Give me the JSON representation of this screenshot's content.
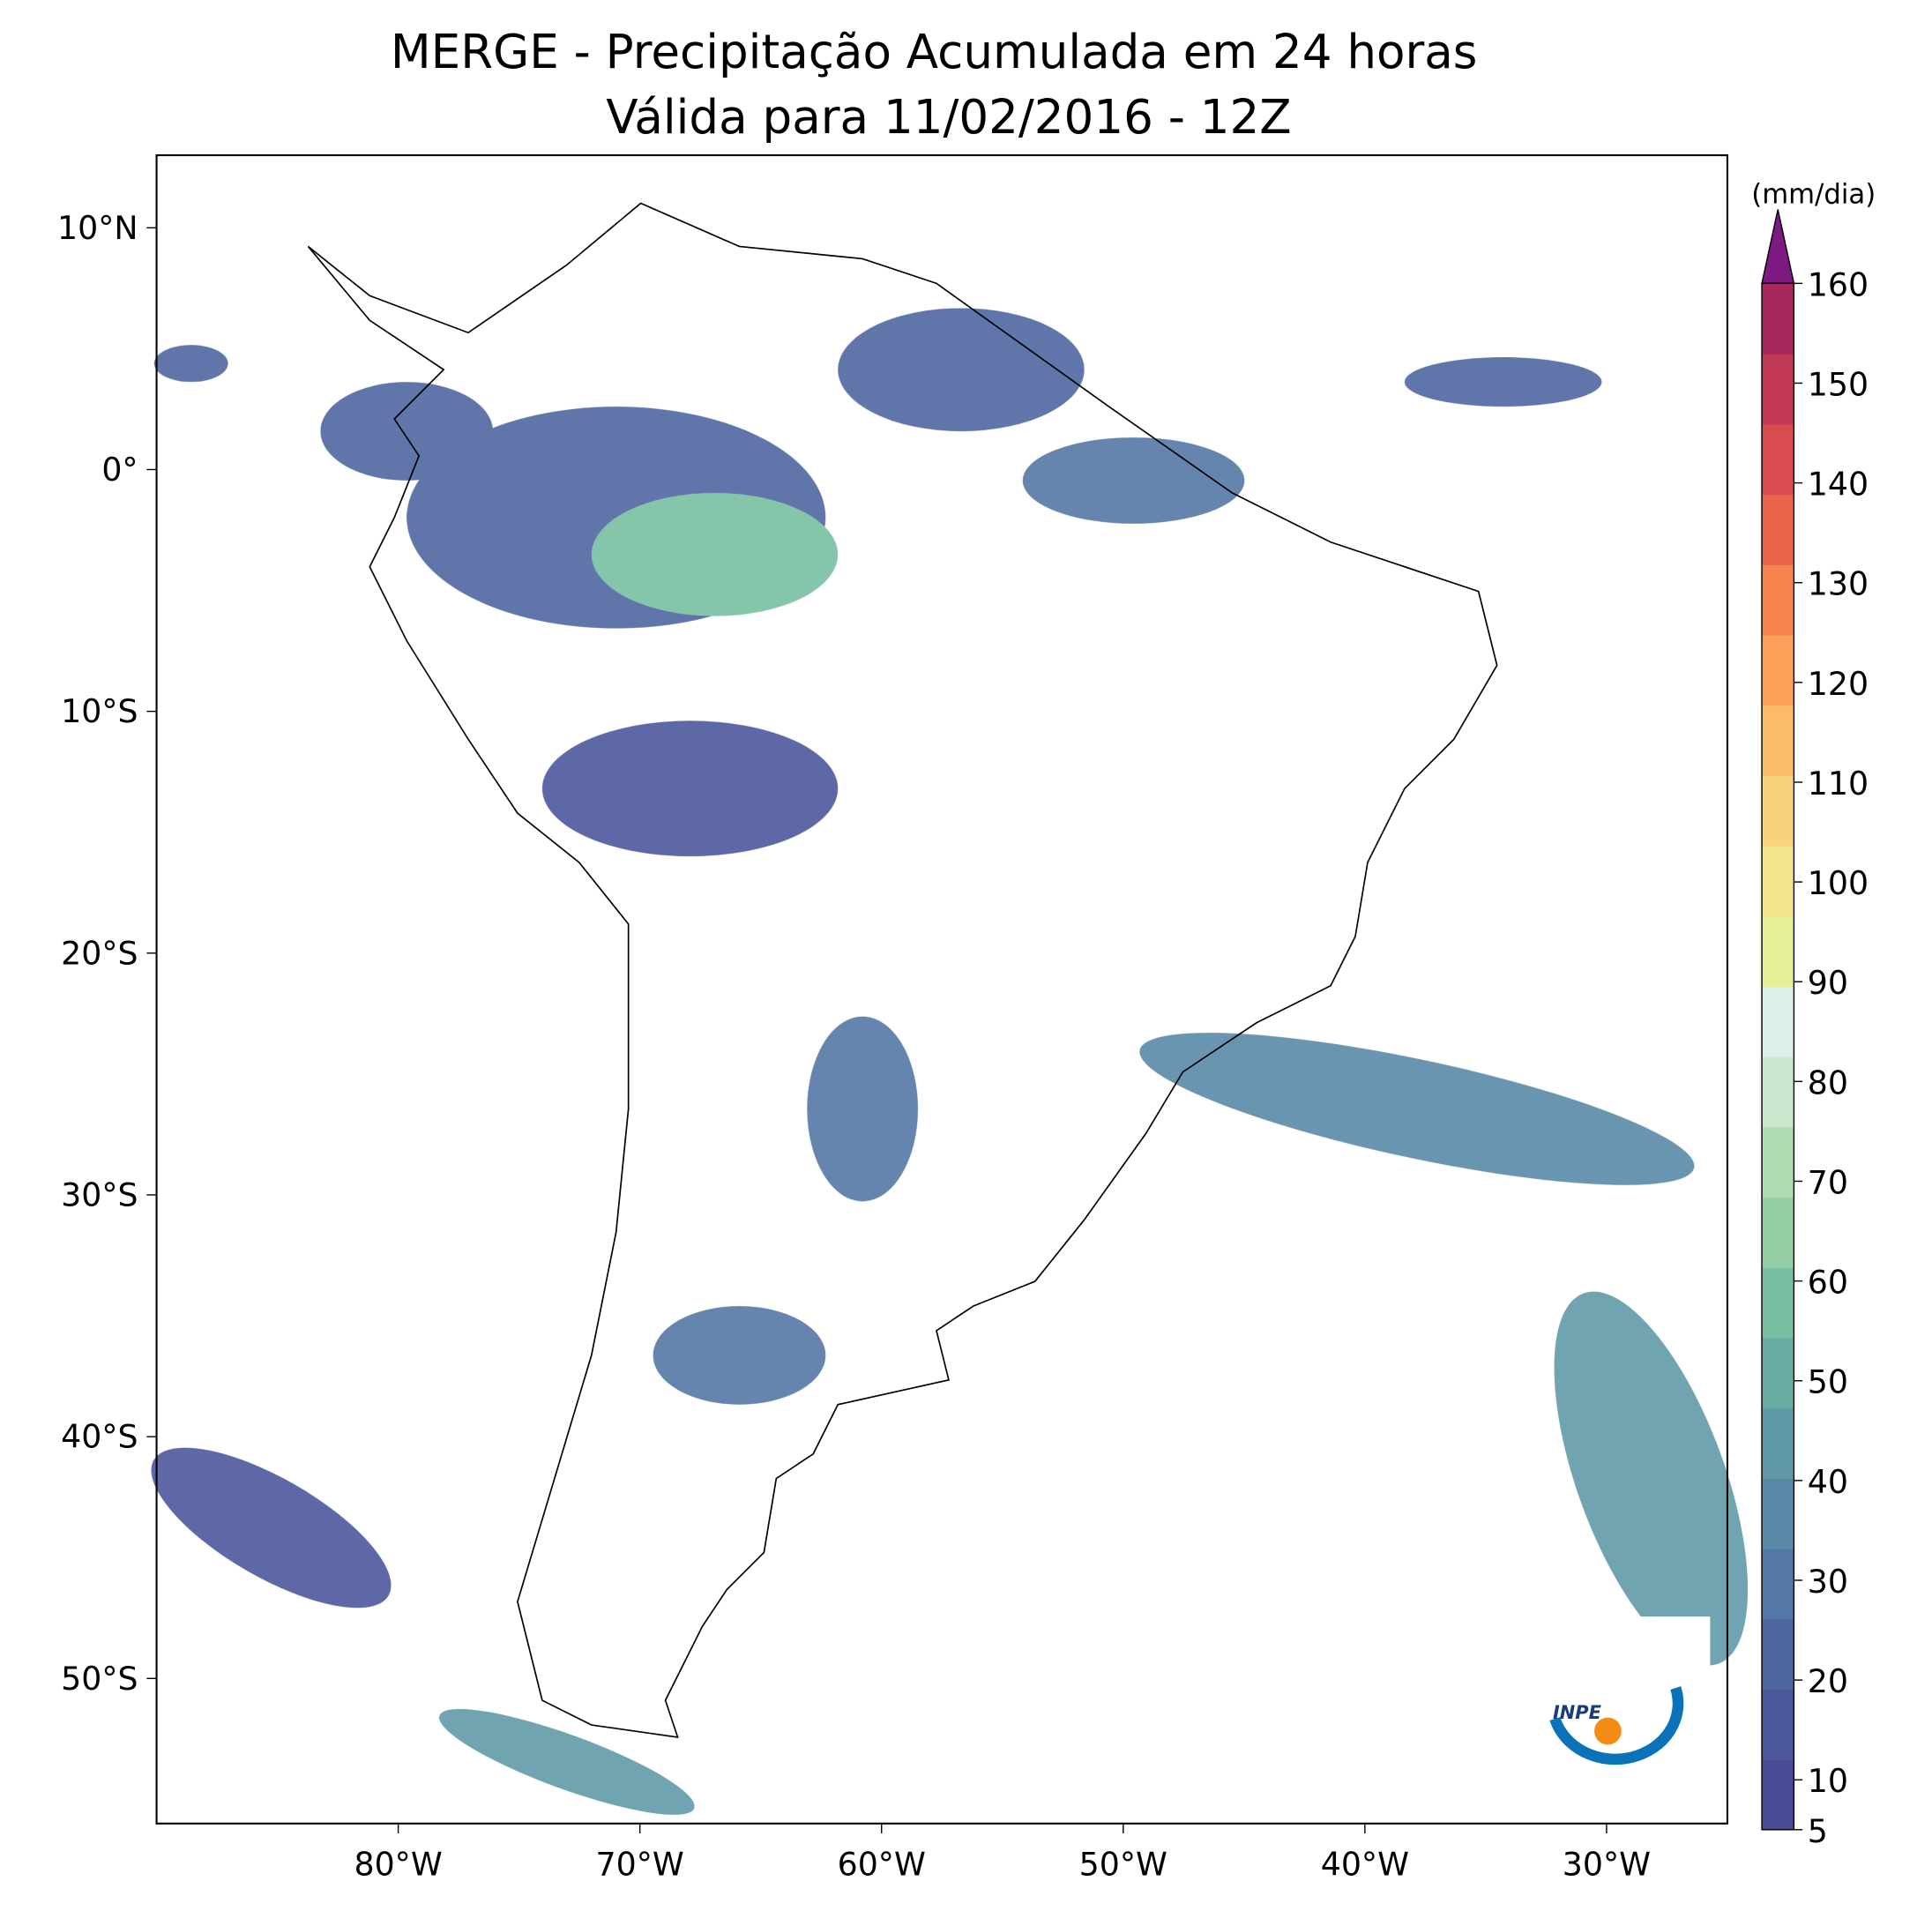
{
  "title": [
    "MERGE - Precipitação Acumulada em 24 horas",
    "Válida para 11/02/2016 - 12Z"
  ],
  "map": {
    "xlim": [
      -90,
      -25
    ],
    "ylim": [
      -56,
      13
    ],
    "xticks": [
      {
        "value": -80,
        "label": "80°W"
      },
      {
        "value": -70,
        "label": "70°W"
      },
      {
        "value": -60,
        "label": "60°W"
      },
      {
        "value": -50,
        "label": "50°W"
      },
      {
        "value": -40,
        "label": "40°W"
      },
      {
        "value": -30,
        "label": "30°W"
      }
    ],
    "yticks": [
      {
        "value": 10,
        "label": "10°N"
      },
      {
        "value": 0,
        "label": "0°"
      },
      {
        "value": -10,
        "label": "10°S"
      },
      {
        "value": -20,
        "label": "20°S"
      },
      {
        "value": -30,
        "label": "30°S"
      },
      {
        "value": -40,
        "label": "40°S"
      },
      {
        "value": -50,
        "label": "50°S"
      }
    ]
  },
  "colorbar": {
    "label": "(mm/dia)",
    "lim": [
      5,
      160
    ],
    "ticks": [
      5,
      10,
      20,
      30,
      40,
      50,
      60,
      70,
      80,
      90,
      100,
      110,
      120,
      130,
      140,
      150,
      160
    ],
    "colors": [
      "#4a4a96",
      "#4c579c",
      "#4f67a1",
      "#5478a6",
      "#5a89a8",
      "#609aa8",
      "#68ada4",
      "#78c0a2",
      "#94cfa6",
      "#b1dcb0",
      "#cbe7cd",
      "#dcefe9",
      "#e6ef98",
      "#f3e58a",
      "#fad27b",
      "#fcbb69",
      "#fba15a",
      "#f6844c",
      "#e9664b",
      "#d84c4f",
      "#c13953",
      "#a5275b"
    ],
    "extend_color": "#7d1a82"
  },
  "logo": "INPE"
}
